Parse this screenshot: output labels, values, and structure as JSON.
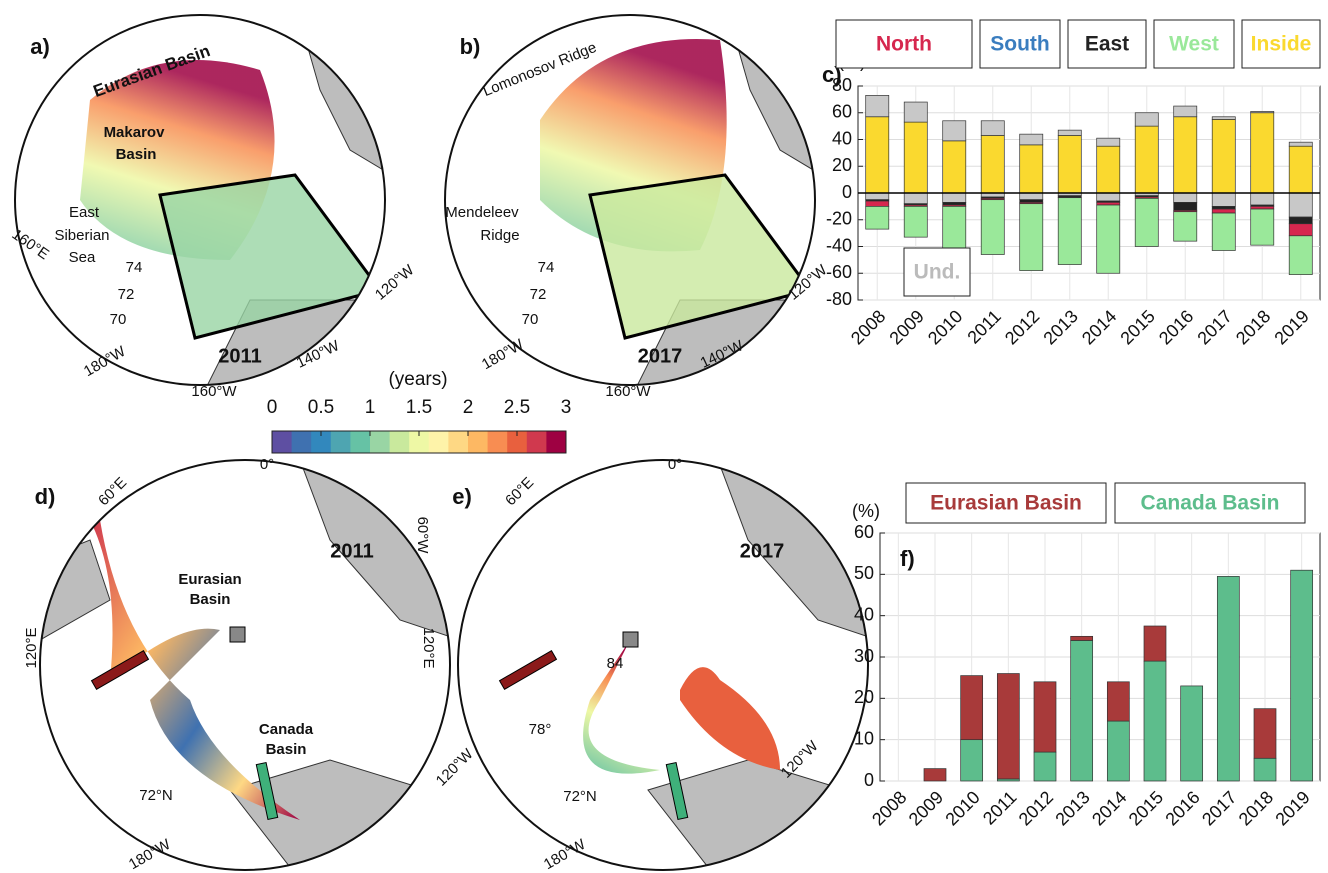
{
  "chart_data": [
    {
      "type": "stacked_bar",
      "panel": "c)",
      "ylabel": "(%)",
      "categories": [
        "2008",
        "2009",
        "2010",
        "2011",
        "2012",
        "2013",
        "2014",
        "2015",
        "2016",
        "2017",
        "2018",
        "2019"
      ],
      "series": [
        {
          "name": "North",
          "color": "#d6274e",
          "values": [
            -4,
            -1,
            -1,
            -1,
            -1,
            -0.5,
            -2,
            -1,
            -1,
            -3,
            -2,
            -9
          ]
        },
        {
          "name": "South",
          "color": "#3a7dbf",
          "values": [
            0,
            0,
            0,
            0,
            0,
            0,
            0,
            0,
            0,
            0,
            0,
            0
          ]
        },
        {
          "name": "East",
          "color": "#222222",
          "values": [
            -1,
            -1,
            -2,
            -1,
            -2,
            -1,
            -1,
            -1,
            -6,
            -2,
            -1,
            -5
          ]
        },
        {
          "name": "West",
          "color": "#9ae89a",
          "values": [
            -17,
            -23,
            -37,
            -41,
            -50,
            -50,
            -51,
            -36,
            -22,
            -28,
            -27,
            -29
          ]
        },
        {
          "name": "Inside",
          "color": "#fad92f",
          "values": [
            57,
            53,
            39,
            43,
            36,
            43,
            35,
            50,
            57,
            55,
            60,
            35
          ]
        },
        {
          "name": "Und.",
          "color": "#c8c8c8",
          "values": [
            16,
            15,
            15,
            11,
            8,
            4,
            6,
            10,
            8,
            2,
            1,
            3
          ]
        },
        {
          "name": "Und.",
          "color": "#c8c8c8",
          "values": [
            -5,
            -8,
            -7,
            -3,
            -5,
            -2,
            -6,
            -2,
            -7,
            -10,
            -9,
            -18
          ]
        }
      ],
      "ylim": [
        -80,
        80
      ],
      "yticks": [
        -80,
        -60,
        -40,
        -20,
        0,
        20,
        40,
        60,
        80
      ],
      "grid": true
    },
    {
      "type": "stacked_bar",
      "panel": "f)",
      "ylabel": "(%)",
      "categories": [
        "2008",
        "2009",
        "2010",
        "2011",
        "2012",
        "2013",
        "2014",
        "2015",
        "2016",
        "2017",
        "2018",
        "2019"
      ],
      "series": [
        {
          "name": "Eurasian Basin",
          "color": "#a83a3a",
          "values": [
            0,
            3,
            15.5,
            25.5,
            17,
            1,
            9.5,
            8.5,
            0,
            0,
            12,
            0
          ]
        },
        {
          "name": "Canada Basin",
          "color": "#5dbd8c",
          "values": [
            0,
            0,
            10,
            0.5,
            7,
            34,
            14.5,
            29,
            23,
            49.5,
            5.5,
            51
          ]
        }
      ],
      "ylim": [
        0,
        60
      ],
      "yticks": [
        0,
        10,
        20,
        30,
        40,
        50,
        60
      ],
      "grid": true
    },
    {
      "type": "colorbar",
      "title": "(years)",
      "xlim": [
        0,
        3
      ],
      "xticks": [
        0,
        0.5,
        1,
        1.5,
        2,
        2.5,
        3
      ],
      "colors": [
        "#5e4fa2",
        "#3f71b0",
        "#3288bd",
        "#4ea5b1",
        "#66c2a5",
        "#99d5a4",
        "#c9e99d",
        "#eef8a5",
        "#fef3a9",
        "#fed884",
        "#fdb863",
        "#f88d52",
        "#e8603e",
        "#d0394e",
        "#9e0142"
      ]
    }
  ],
  "maps": [
    {
      "labels": [
        "a)",
        "Eurasian Basin",
        "Makarov",
        "Basin",
        "East",
        "Siberian",
        "Sea",
        "160°E",
        "74",
        "72",
        "70",
        "180°W",
        "160°W",
        "140°W",
        "120°W",
        "2011"
      ]
    },
    {
      "labels": [
        "b)",
        "Lomonosov Ridge",
        "Mendeleev",
        "Ridge",
        "74",
        "72",
        "70",
        "180°W",
        "160°W",
        "140°W",
        "120°W",
        "2017"
      ]
    },
    {
      "labels": [
        "d)",
        "0°",
        "60°E",
        "60°W",
        "120°E",
        "2011",
        "Eurasian",
        "Basin",
        "Canada",
        "Basin",
        "72°N",
        "180°W",
        "120°W"
      ]
    },
    {
      "labels": [
        "e)",
        "0°",
        "60°E",
        "120°E",
        "120°W",
        "2017",
        "84",
        "78°",
        "72°N",
        "180°W"
      ]
    }
  ]
}
